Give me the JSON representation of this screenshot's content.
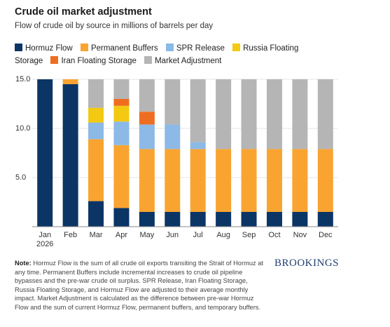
{
  "chart_data": {
    "type": "stacked-bar",
    "title": "Crude oil market adjustment",
    "subtitle": "Flow of crude oil by source in millions of barrels per day",
    "categories": [
      "Jan 2026",
      "Feb",
      "Mar",
      "Apr",
      "May",
      "Jun",
      "Jul",
      "Aug",
      "Sep",
      "Oct",
      "Nov",
      "Dec"
    ],
    "series": [
      {
        "name": "Hormuz Flow",
        "color": "#0b3565",
        "values": [
          15.0,
          14.5,
          2.6,
          1.9,
          1.5,
          1.5,
          1.5,
          1.5,
          1.5,
          1.5,
          1.5,
          1.5
        ]
      },
      {
        "name": "Permanent Buffers",
        "color": "#f9a431",
        "values": [
          0,
          0.5,
          6.3,
          6.4,
          6.4,
          6.4,
          6.4,
          6.4,
          6.4,
          6.4,
          6.4,
          6.4
        ]
      },
      {
        "name": "SPR Release",
        "color": "#8cb9e6",
        "values": [
          0,
          0,
          1.7,
          2.4,
          2.5,
          2.5,
          0.7,
          0,
          0,
          0,
          0,
          0
        ]
      },
      {
        "name": "Russia Floating Storage",
        "color": "#f3c912",
        "values": [
          0,
          0,
          1.5,
          1.6,
          0,
          0,
          0,
          0,
          0,
          0,
          0,
          0
        ]
      },
      {
        "name": "Iran Floating Storage",
        "color": "#ee6d21",
        "values": [
          0,
          0,
          0,
          0.7,
          1.3,
          0,
          0,
          0,
          0,
          0,
          0,
          0
        ]
      },
      {
        "name": "Market Adjustment",
        "color": "#b5b5b5",
        "values": [
          0,
          0,
          2.9,
          2.0,
          3.3,
          4.6,
          6.4,
          7.1,
          7.1,
          7.1,
          7.1,
          7.1
        ]
      }
    ],
    "ylim": [
      0,
      15
    ],
    "yticks": [
      {
        "value": 5,
        "label": "5.0"
      },
      {
        "value": 10,
        "label": "10.0"
      },
      {
        "value": 15,
        "label": "15.0"
      }
    ],
    "grid": true,
    "note": {
      "label": "Note:",
      "text": "Hormuz Flow is the sum of all crude oil exports transiting the Strait of Hormuz at any time. Permanent Buffers include incremental increases to crude oil pipeline bypasses and the pre-war crude oil surplus. SPR Release, Iran Floating Storage, Russia Floating Storage, and Hormuz Flow are adjusted to their average monthly impact. Market Adjustment is calculated as the difference between pre-war Hormuz Flow and the sum of current Hormuz Flow, permanent buffers, and temporary buffers."
    },
    "source": "BROOKINGS"
  }
}
